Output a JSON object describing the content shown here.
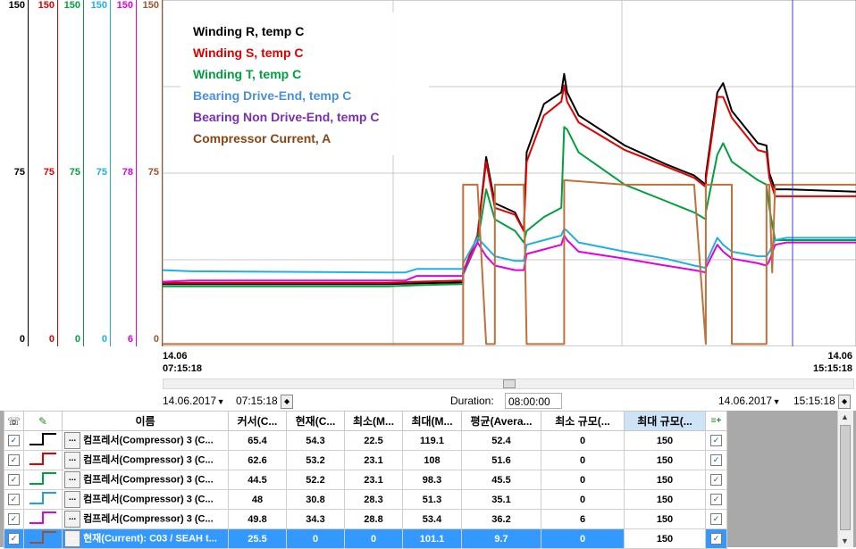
{
  "scales": [
    {
      "max": "150",
      "mid": "75",
      "min": "0",
      "color": "#000000"
    },
    {
      "max": "150",
      "mid": "75",
      "min": "0",
      "color": "#e00000"
    },
    {
      "max": "150",
      "mid": "75",
      "min": "0",
      "color": "#00a040"
    },
    {
      "max": "150",
      "mid": "75",
      "min": "0",
      "color": "#20b0e0"
    },
    {
      "max": "150",
      "mid": "78",
      "min": "6",
      "color": "#e000e0"
    },
    {
      "max": "150",
      "mid": "75",
      "min": "0",
      "color": "#a0522d"
    }
  ],
  "legend": [
    {
      "label": "Winding R, temp C",
      "color": "#000000"
    },
    {
      "label": "Winding S, temp C",
      "color": "#e00000"
    },
    {
      "label": "Winding T, temp C",
      "color": "#00a040"
    },
    {
      "label": "Bearing Drive-End, temp C",
      "color": "#4a90d9"
    },
    {
      "label": "Bearing Non Drive-End, temp C",
      "color": "#7a2fb0"
    },
    {
      "label": "Compressor Current, A",
      "color": "#8b4513"
    }
  ],
  "time_axis": {
    "start_date": "14.06",
    "start_time": "07:15:18",
    "end_date": "14.06",
    "end_time": "15:15:18"
  },
  "controls": {
    "start_date": "14.06.2017",
    "start_time": "07:15:18",
    "duration_label": "Duration:",
    "duration_value": "08:00:00",
    "end_date": "14.06.2017",
    "end_time": "15:15:18"
  },
  "table": {
    "headers": {
      "name": "이름",
      "cursor": "커서(C...",
      "current": "현재(C...",
      "min": "최소(M...",
      "max": "최대(M...",
      "avg": "평균(Avera...",
      "min_scale": "최소 규모(...",
      "max_scale": "최대 규모(..."
    },
    "rows": [
      {
        "color": "#000000",
        "name": "컴프레서(Compressor) 3 (C...",
        "cursor": "65.4",
        "current": "54.3",
        "min": "22.5",
        "max": "119.1",
        "avg": "52.4",
        "min_scale": "0",
        "max_scale": "150"
      },
      {
        "color": "#e00000",
        "name": "컴프레서(Compressor) 3 (C...",
        "cursor": "62.6",
        "current": "53.2",
        "min": "23.1",
        "max": "108",
        "avg": "51.6",
        "min_scale": "0",
        "max_scale": "150"
      },
      {
        "color": "#00a040",
        "name": "컴프레서(Compressor) 3 (C...",
        "cursor": "44.5",
        "current": "52.2",
        "min": "23.1",
        "max": "98.3",
        "avg": "45.5",
        "min_scale": "0",
        "max_scale": "150"
      },
      {
        "color": "#20a0e0",
        "name": "컴프레서(Compressor) 3 (C...",
        "cursor": "48",
        "current": "30.8",
        "min": "28.3",
        "max": "51.3",
        "avg": "35.1",
        "min_scale": "0",
        "max_scale": "150"
      },
      {
        "color": "#e000e0",
        "name": "컴프레서(Compressor) 3 (C...",
        "cursor": "49.8",
        "current": "34.3",
        "min": "28.8",
        "max": "53.4",
        "avg": "36.2",
        "min_scale": "6",
        "max_scale": "150"
      },
      {
        "color": "#a0522d",
        "name": "현재(Current): C03 / SEAH t...",
        "cursor": "25.5",
        "current": "0",
        "min": "0",
        "max": "101.1",
        "avg": "9.7",
        "min_scale": "0",
        "max_scale": "150",
        "selected": true
      }
    ]
  },
  "series": [
    {
      "color": "#000000",
      "points": [
        [
          0,
          27
        ],
        [
          0.39,
          27
        ],
        [
          0.44,
          27.3
        ],
        [
          0.52,
          27.7
        ],
        [
          0.52,
          32
        ],
        [
          0.545,
          48
        ],
        [
          0.56,
          82
        ],
        [
          0.575,
          62
        ],
        [
          0.61,
          58
        ],
        [
          0.625,
          50
        ],
        [
          0.63,
          84
        ],
        [
          0.66,
          105
        ],
        [
          0.69,
          110
        ],
        [
          0.695,
          118
        ],
        [
          0.7,
          110
        ],
        [
          0.72,
          100
        ],
        [
          0.8,
          87
        ],
        [
          0.87,
          79
        ],
        [
          0.92,
          74
        ],
        [
          0.94,
          70
        ],
        [
          0.94,
          74
        ],
        [
          0.96,
          110
        ],
        [
          0.97,
          114
        ],
        [
          0.985,
          102
        ],
        [
          1.03,
          88
        ],
        [
          1.045,
          87
        ],
        [
          1.05,
          75
        ],
        [
          1.06,
          68
        ],
        [
          1.08,
          68
        ],
        [
          1.2,
          67
        ]
      ]
    },
    {
      "color": "#e00000",
      "points": [
        [
          0,
          27.5
        ],
        [
          0.39,
          27.5
        ],
        [
          0.44,
          28
        ],
        [
          0.52,
          28.5
        ],
        [
          0.52,
          32
        ],
        [
          0.545,
          48
        ],
        [
          0.56,
          80
        ],
        [
          0.575,
          60
        ],
        [
          0.61,
          57
        ],
        [
          0.625,
          50
        ],
        [
          0.63,
          80
        ],
        [
          0.66,
          100
        ],
        [
          0.69,
          106
        ],
        [
          0.695,
          113
        ],
        [
          0.7,
          106
        ],
        [
          0.72,
          97
        ],
        [
          0.8,
          85
        ],
        [
          0.87,
          78
        ],
        [
          0.92,
          73
        ],
        [
          0.94,
          69
        ],
        [
          0.94,
          72
        ],
        [
          0.96,
          108
        ],
        [
          0.97,
          108
        ],
        [
          0.985,
          99
        ],
        [
          1.03,
          85
        ],
        [
          1.045,
          84
        ],
        [
          1.05,
          73
        ],
        [
          1.06,
          65
        ],
        [
          1.08,
          65
        ],
        [
          1.2,
          65
        ]
      ]
    },
    {
      "color": "#00a040",
      "points": [
        [
          0,
          26
        ],
        [
          0.39,
          26
        ],
        [
          0.44,
          26.5
        ],
        [
          0.52,
          27
        ],
        [
          0.52,
          31
        ],
        [
          0.545,
          45
        ],
        [
          0.56,
          68
        ],
        [
          0.575,
          55
        ],
        [
          0.61,
          50
        ],
        [
          0.625,
          45
        ],
        [
          0.63,
          50
        ],
        [
          0.66,
          56
        ],
        [
          0.69,
          60
        ],
        [
          0.695,
          95
        ],
        [
          0.7,
          94
        ],
        [
          0.72,
          84
        ],
        [
          0.8,
          70
        ],
        [
          0.87,
          63
        ],
        [
          0.92,
          58
        ],
        [
          0.94,
          55
        ],
        [
          0.94,
          58
        ],
        [
          0.96,
          83
        ],
        [
          0.97,
          88
        ],
        [
          0.985,
          80
        ],
        [
          1.03,
          72
        ],
        [
          1.045,
          70
        ],
        [
          1.05,
          60
        ],
        [
          1.06,
          46
        ],
        [
          1.08,
          46
        ],
        [
          1.2,
          46
        ]
      ]
    },
    {
      "color": "#20b0e0",
      "points": [
        [
          0,
          33
        ],
        [
          0.05,
          32.5
        ],
        [
          0.39,
          32
        ],
        [
          0.42,
          32
        ],
        [
          0.44,
          33.5
        ],
        [
          0.52,
          33.5
        ],
        [
          0.52,
          36
        ],
        [
          0.545,
          47
        ],
        [
          0.56,
          43
        ],
        [
          0.575,
          39
        ],
        [
          0.61,
          37
        ],
        [
          0.625,
          37
        ],
        [
          0.63,
          44
        ],
        [
          0.66,
          46
        ],
        [
          0.69,
          48
        ],
        [
          0.695,
          51
        ],
        [
          0.7,
          50
        ],
        [
          0.72,
          45
        ],
        [
          0.8,
          41
        ],
        [
          0.87,
          38
        ],
        [
          0.92,
          35
        ],
        [
          0.94,
          34
        ],
        [
          0.94,
          36
        ],
        [
          0.96,
          47
        ],
        [
          0.97,
          44
        ],
        [
          0.985,
          41
        ],
        [
          1.03,
          39
        ],
        [
          1.045,
          39
        ],
        [
          1.05,
          41
        ],
        [
          1.06,
          46
        ],
        [
          1.08,
          47
        ],
        [
          1.2,
          47
        ]
      ]
    },
    {
      "color": "#e000e0",
      "points": [
        [
          0,
          28
        ],
        [
          0.05,
          28.5
        ],
        [
          0.39,
          28.5
        ],
        [
          0.42,
          28.5
        ],
        [
          0.44,
          30.5
        ],
        [
          0.52,
          30.5
        ],
        [
          0.52,
          32
        ],
        [
          0.545,
          45
        ],
        [
          0.56,
          39
        ],
        [
          0.575,
          35
        ],
        [
          0.61,
          33
        ],
        [
          0.625,
          33
        ],
        [
          0.63,
          40
        ],
        [
          0.66,
          42
        ],
        [
          0.69,
          44
        ],
        [
          0.695,
          48
        ],
        [
          0.7,
          46
        ],
        [
          0.72,
          41
        ],
        [
          0.8,
          38
        ],
        [
          0.87,
          35
        ],
        [
          0.92,
          33
        ],
        [
          0.94,
          32
        ],
        [
          0.94,
          34
        ],
        [
          0.96,
          44
        ],
        [
          0.97,
          41
        ],
        [
          0.985,
          38
        ],
        [
          1.03,
          36
        ],
        [
          1.045,
          35
        ],
        [
          1.05,
          37
        ],
        [
          1.06,
          44
        ],
        [
          1.08,
          45
        ],
        [
          1.2,
          45
        ]
      ]
    },
    {
      "color": "#c0703a",
      "points": [
        [
          0,
          1
        ],
        [
          0.52,
          1
        ],
        [
          0.52,
          70
        ],
        [
          0.54,
          70
        ],
        [
          0.545,
          70
        ],
        [
          0.56,
          1
        ],
        [
          0.575,
          1
        ],
        [
          0.575,
          70
        ],
        [
          0.61,
          70
        ],
        [
          0.625,
          70
        ],
        [
          0.63,
          1
        ],
        [
          0.695,
          1
        ],
        [
          0.695,
          72
        ],
        [
          0.8,
          70
        ],
        [
          0.87,
          70
        ],
        [
          0.92,
          70
        ],
        [
          0.94,
          1
        ],
        [
          0.94,
          70
        ],
        [
          0.985,
          70
        ],
        [
          0.985,
          1
        ],
        [
          1.045,
          1
        ],
        [
          1.045,
          70
        ],
        [
          1.05,
          70
        ],
        [
          1.055,
          32
        ],
        [
          1.06,
          70
        ],
        [
          1.2,
          70
        ]
      ]
    }
  ]
}
